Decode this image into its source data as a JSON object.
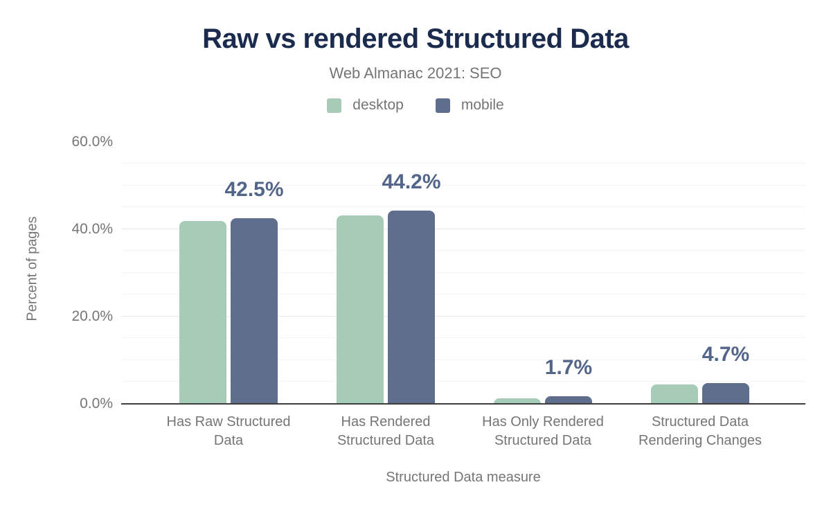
{
  "chart": {
    "title": "Raw vs rendered Structured Data",
    "subtitle": "Web Almanac 2021: SEO",
    "colors": {
      "desktop_series": "#a6cbb7",
      "mobile_series": "#5f6e8c",
      "title_text": "#1b2b4e",
      "muted_text": "#757575",
      "data_label_text": "#54658a",
      "axis_line": "#3d3d3d",
      "grid_major": "#e8e8ee",
      "grid_minor": "#f4f4f7",
      "background": "#ffffff"
    }
  },
  "chart_data": {
    "type": "bar",
    "title": "Raw vs rendered Structured Data",
    "subtitle": "Web Almanac 2021: SEO",
    "categories": [
      "Has Raw Structured Data",
      "Has Rendered Structured Data",
      "Has Only Rendered Structured Data",
      "Structured Data Rendering Changes"
    ],
    "category_tick_lines": [
      "Has Raw Structured\nData",
      "Has Rendered\nStructured Data",
      "Has Only Rendered\nStructured Data",
      "Structured Data\nRendering Changes"
    ],
    "series": [
      {
        "name": "desktop",
        "color": "#a6cbb7",
        "values": [
          41.8,
          43.2,
          1.3,
          4.5
        ]
      },
      {
        "name": "mobile",
        "color": "#5f6e8c",
        "values": [
          42.5,
          44.2,
          1.7,
          4.7
        ]
      }
    ],
    "data_labels": {
      "on_series": "mobile",
      "values": [
        "42.5%",
        "44.2%",
        "1.7%",
        "4.7%"
      ]
    },
    "xlabel": "Structured Data measure",
    "ylabel": "Percent of pages",
    "ylim": [
      0,
      62
    ],
    "yticks": [
      {
        "value": 0,
        "label": "0.0%"
      },
      {
        "value": 20,
        "label": "20.0%"
      },
      {
        "value": 40,
        "label": "40.0%"
      },
      {
        "value": 60,
        "label": "60.0%"
      }
    ],
    "minor_grid_step": 5,
    "grid": true,
    "legend_position": "top"
  }
}
